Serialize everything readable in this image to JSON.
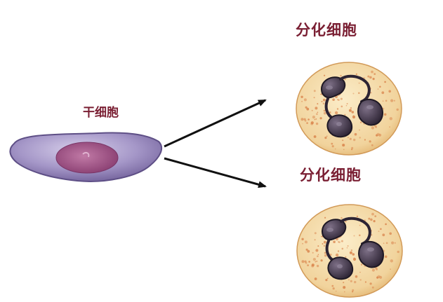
{
  "labels": {
    "stem_cell": "干细胞",
    "differentiated_cell_top": "分化细胞",
    "differentiated_cell_bottom": "分化细胞"
  },
  "colors": {
    "label_text": "#7a1f33",
    "stem_cytoplasm": "#8e7fb3",
    "stem_cytoplasm_light": "#c9c0e0",
    "stem_nucleus": "#9b4f82",
    "cell_cytoplasm": "#f3dcae",
    "cell_granule": "#d9824a",
    "cell_nucleus": "#3e3245",
    "arrow": "#111111"
  },
  "icons": {
    "stem_cell": "stem-cell-illustration",
    "differentiated_cell": "neutrophil-cell-illustration",
    "arrow": "arrow-right-icon"
  }
}
